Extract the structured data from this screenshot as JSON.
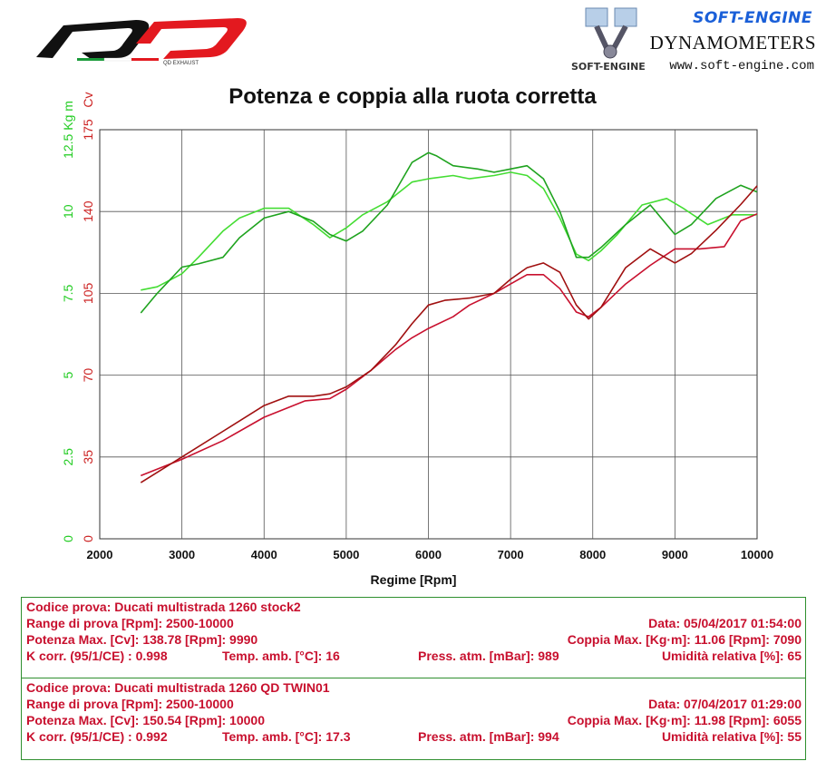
{
  "header": {
    "logo_text": "QD EXHAUST",
    "brand_name": "SOFT-ENGINE",
    "brand_subtitle": "DYNAMOMETERS",
    "brand_url": "www.soft-engine.com",
    "brand_mark_text": "SOFT-ENGINE"
  },
  "colors": {
    "torque_axis": "#22cc22",
    "power_axis": "#cc2222",
    "green_stock": "#44dd33",
    "green_qd": "#1fa31f",
    "red_stock": "#c8102e",
    "red_qd": "#a01010",
    "info_text": "#c8102e",
    "box_border": "#2f8f2f"
  },
  "chart_data": {
    "type": "line",
    "title": "Potenza e coppia alla ruota corretta",
    "xlabel": "Regime [Rpm]",
    "xlim": [
      2000,
      10000
    ],
    "x_ticks": [
      "2000",
      "3000",
      "4000",
      "5000",
      "6000",
      "7000",
      "8000",
      "9000",
      "10000"
    ],
    "y_left_outer": {
      "label": "Kg m",
      "unit_value": "12.5",
      "ticks": [
        "0",
        "2.5",
        "5",
        "7.5",
        "10",
        "12.5"
      ],
      "range": [
        0,
        12.5
      ]
    },
    "y_left_inner": {
      "label": "Cv",
      "ticks": [
        "0",
        "35",
        "70",
        "105",
        "140",
        "175"
      ],
      "range": [
        0,
        175
      ]
    },
    "grid": true,
    "series": [
      {
        "kind": "torque",
        "color": "#44dd33",
        "x": [
          2500,
          2700,
          3000,
          3200,
          3500,
          3700,
          4000,
          4300,
          4600,
          4800,
          5000,
          5200,
          5500,
          5800,
          6000,
          6300,
          6500,
          6800,
          7000,
          7200,
          7400,
          7600,
          7800,
          7950,
          8100,
          8300,
          8600,
          8900,
          9100,
          9400,
          9700,
          10000
        ],
        "y": [
          7.6,
          7.7,
          8.1,
          8.6,
          9.4,
          9.8,
          10.1,
          10.1,
          9.6,
          9.2,
          9.5,
          9.9,
          10.3,
          10.9,
          11.0,
          11.1,
          11.0,
          11.1,
          11.2,
          11.1,
          10.7,
          9.8,
          8.7,
          8.5,
          8.8,
          9.3,
          10.2,
          10.4,
          10.1,
          9.6,
          9.9,
          9.9
        ]
      },
      {
        "kind": "torque",
        "color": "#1fa31f",
        "x": [
          2500,
          2700,
          3000,
          3200,
          3500,
          3700,
          4000,
          4300,
          4600,
          4800,
          5000,
          5200,
          5500,
          5800,
          6000,
          6100,
          6300,
          6600,
          6800,
          7000,
          7200,
          7400,
          7600,
          7800,
          7950,
          8100,
          8400,
          8700,
          9000,
          9200,
          9500,
          9800,
          10000
        ],
        "y": [
          6.9,
          7.5,
          8.3,
          8.4,
          8.6,
          9.2,
          9.8,
          10.0,
          9.7,
          9.3,
          9.1,
          9.4,
          10.2,
          11.5,
          11.8,
          11.7,
          11.4,
          11.3,
          11.2,
          11.3,
          11.4,
          11.0,
          10.0,
          8.6,
          8.6,
          8.9,
          9.6,
          10.2,
          9.3,
          9.6,
          10.4,
          10.8,
          10.6
        ]
      },
      {
        "kind": "power",
        "color": "#c8102e",
        "x": [
          2500,
          3000,
          3500,
          4000,
          4500,
          4800,
          5000,
          5300,
          5600,
          5800,
          6000,
          6300,
          6500,
          6800,
          7000,
          7200,
          7400,
          7600,
          7800,
          7950,
          8100,
          8400,
          8700,
          9000,
          9300,
          9600,
          9800,
          10000
        ],
        "y": [
          27,
          34,
          42,
          52,
          59,
          60,
          64,
          72,
          81,
          86,
          90,
          95,
          100,
          105,
          109,
          113,
          113,
          107,
          97,
          95,
          99,
          109,
          117,
          124,
          124,
          125,
          136,
          139
        ]
      },
      {
        "kind": "power",
        "color": "#a01010",
        "x": [
          2500,
          3000,
          3500,
          4000,
          4300,
          4600,
          4800,
          5000,
          5300,
          5600,
          5800,
          6000,
          6200,
          6500,
          6800,
          7000,
          7200,
          7400,
          7600,
          7800,
          7950,
          8100,
          8400,
          8700,
          9000,
          9200,
          9500,
          9800,
          10000
        ],
        "y": [
          24,
          35,
          46,
          57,
          61,
          61,
          62,
          65,
          72,
          83,
          92,
          100,
          102,
          103,
          105,
          111,
          116,
          118,
          114,
          100,
          94,
          99,
          116,
          124,
          118,
          122,
          132,
          143,
          151
        ]
      }
    ]
  },
  "tests": [
    {
      "line1_left": "Codice prova: Ducati multistrada 1260 stock2",
      "line2_left": "Range di prova [Rpm]: 2500-10000",
      "line2_right": "Data: 05/04/2017   01:54:00",
      "line3_left": "Potenza Max. [Cv]: 138.78   [Rpm]: 9990",
      "line3_right": "Coppia Max. [Kg·m]: 11.06   [Rpm]: 7090",
      "line4_a": "K corr. (95/1/CE) : 0.998",
      "line4_b": "Temp. amb. [°C]: 16",
      "line4_c": "Press. atm. [mBar]: 989",
      "line4_d": "Umidità relativa [%]: 65"
    },
    {
      "line1_left": "Codice prova: Ducati multistrada 1260 QD TWIN01",
      "line2_left": "Range di prova [Rpm]: 2500-10000",
      "line2_right": "Data: 07/04/2017   01:29:00",
      "line3_left": "Potenza Max. [Cv]: 150.54   [Rpm]: 10000",
      "line3_right": "Coppia Max. [Kg·m]: 11.98   [Rpm]: 6055",
      "line4_a": "K corr. (95/1/CE) : 0.992",
      "line4_b": "Temp. amb. [°C]: 17.3",
      "line4_c": "Press. atm. [mBar]: 994",
      "line4_d": "Umidità relativa [%]: 55"
    }
  ]
}
